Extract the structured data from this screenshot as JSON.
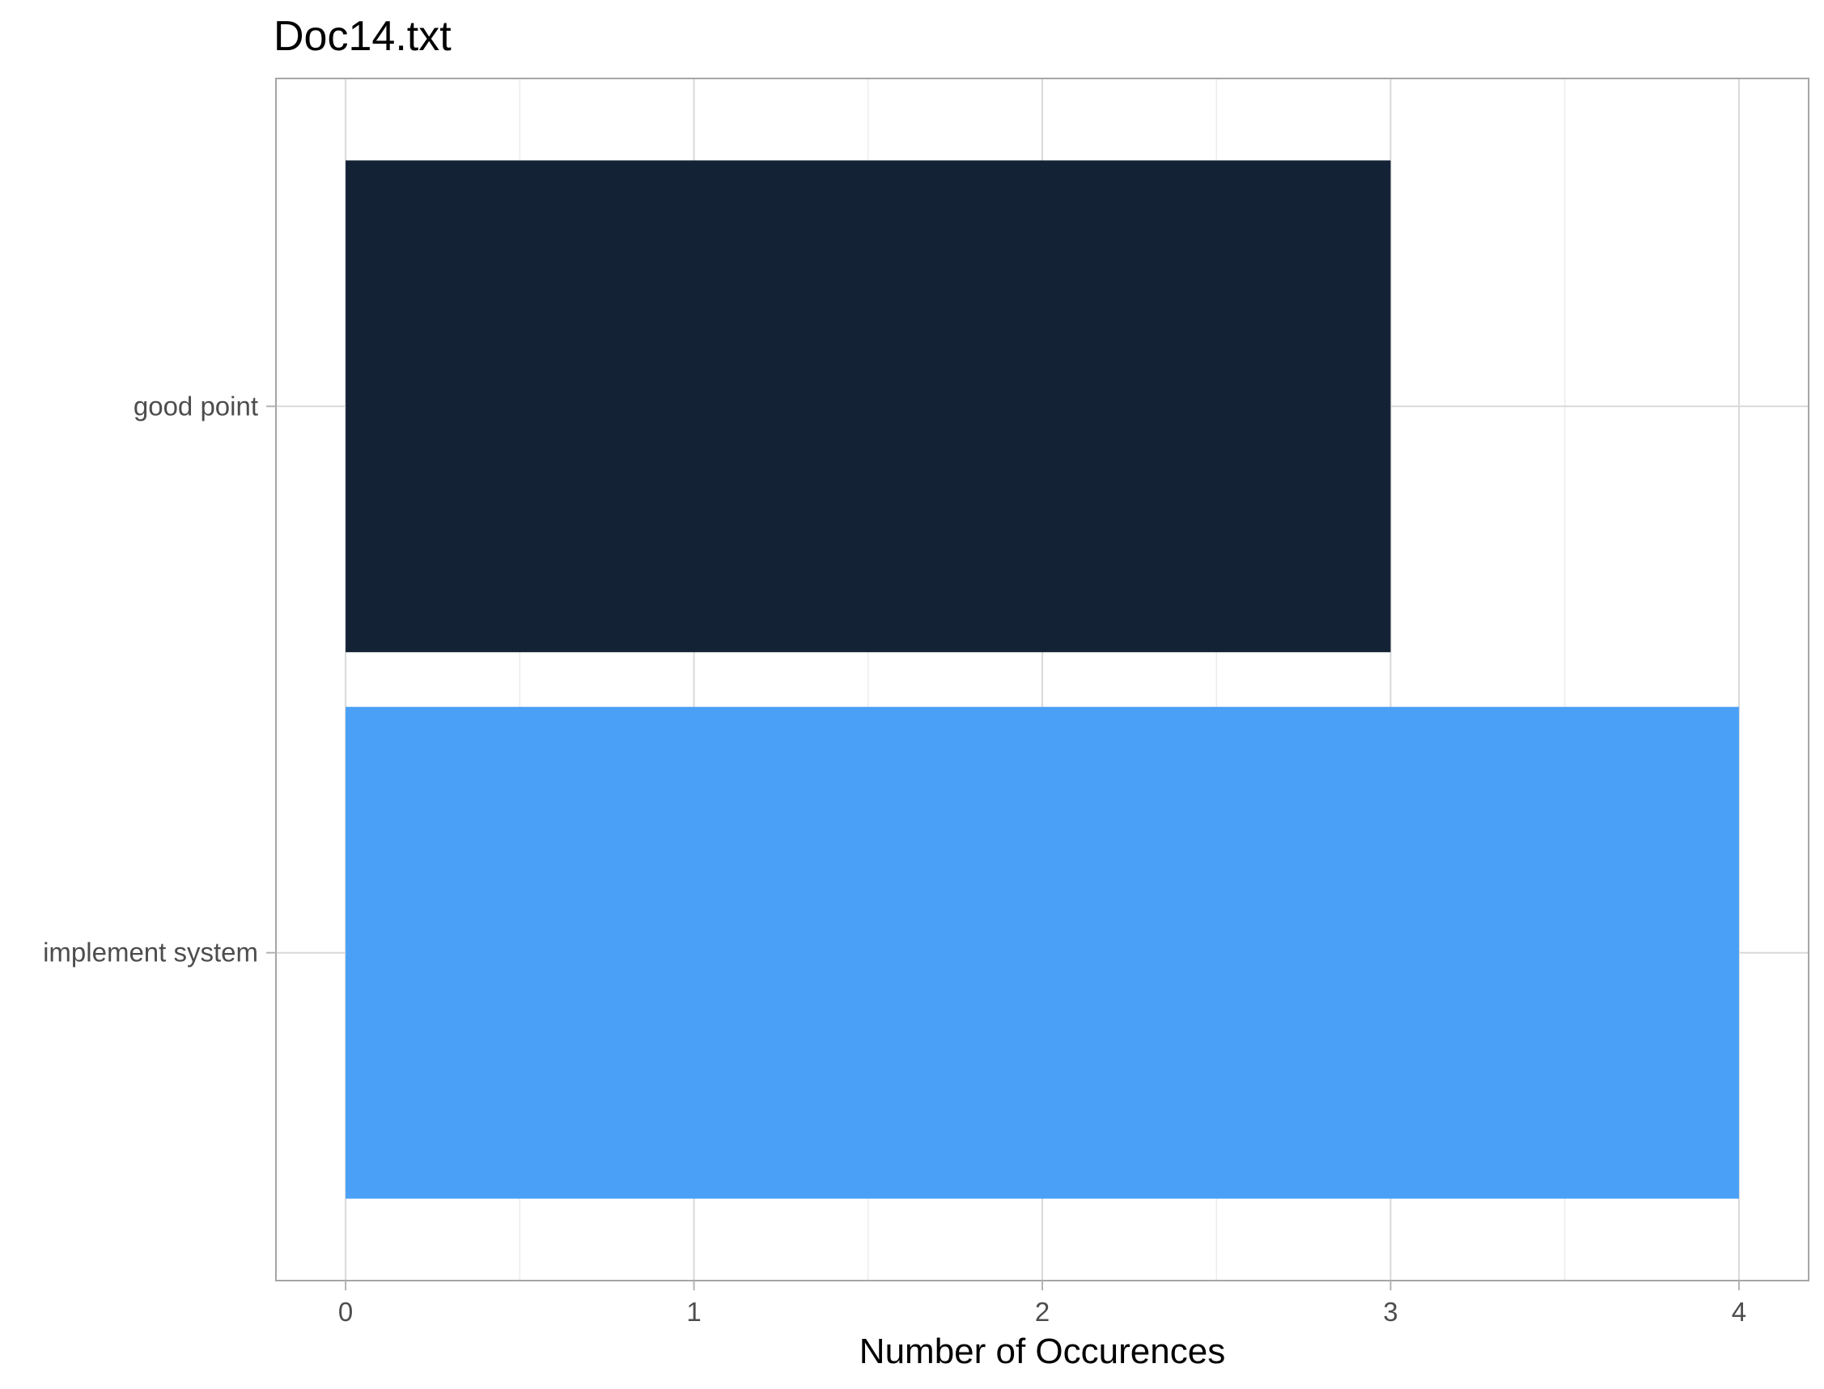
{
  "chart_data": {
    "type": "bar",
    "orientation": "horizontal",
    "title": "Doc14.txt",
    "xlabel": "Number of Occurences",
    "ylabel": "",
    "categories": [
      "good point",
      "implement system"
    ],
    "values": [
      3,
      4
    ],
    "colors": [
      "#132235",
      "#4aa0f6"
    ],
    "xlim": [
      -0.2,
      4.2
    ],
    "xticks": [
      0,
      1,
      2,
      3,
      4
    ],
    "grid": true,
    "legend": "none"
  }
}
